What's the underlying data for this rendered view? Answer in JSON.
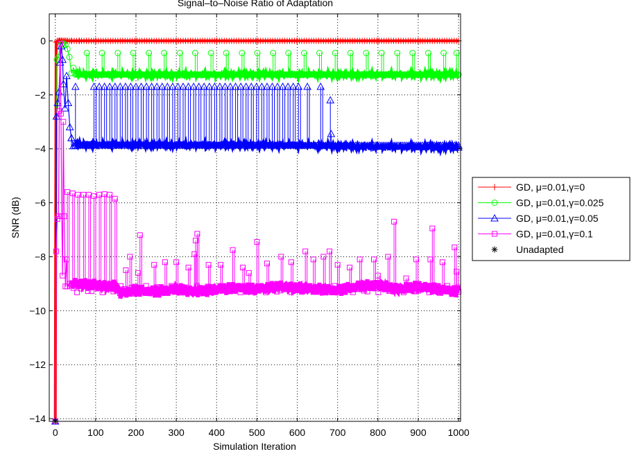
{
  "chart_data": {
    "type": "line",
    "title": "Signal–to–Noise Ratio of Adaptation",
    "xlabel": "Simulation Iteration",
    "ylabel": "SNR (dB)",
    "xlim": [
      -15,
      1005
    ],
    "ylim": [
      -14.1,
      1.0
    ],
    "xticks": [
      0,
      100,
      200,
      300,
      400,
      500,
      600,
      700,
      800,
      900,
      1000
    ],
    "yticks": [
      0,
      -2,
      -4,
      -6,
      -8,
      -10,
      -12,
      -14
    ],
    "grid": true,
    "legend_position": "outside-right",
    "series": [
      {
        "name": "GD, μ=0.01,γ=0",
        "color": "#ff0000",
        "marker": "plus",
        "x": [
          0,
          2,
          5,
          8,
          10,
          12,
          15,
          20,
          25,
          30,
          40,
          60,
          100,
          200,
          300,
          400,
          500,
          600,
          700,
          800,
          900,
          1000
        ],
        "y": [
          -14.1,
          -0.05,
          -0.02,
          -0.01,
          0,
          0,
          0,
          0,
          0,
          0,
          0,
          0,
          0,
          0,
          0,
          0,
          0,
          0,
          0,
          0,
          0,
          0
        ]
      },
      {
        "name": "GD, μ=0.01,γ=0.025",
        "color": "#00ff00",
        "marker": "circle",
        "x": [
          0,
          4,
          8,
          12,
          16,
          20,
          25,
          30,
          35,
          40,
          45,
          50,
          60,
          80,
          100,
          200,
          300,
          400,
          500,
          600,
          700,
          800,
          900,
          1000
        ],
        "y": [
          -14.1,
          -0.7,
          -0.6,
          -0.2,
          -0.1,
          -0.1,
          -0.15,
          -0.3,
          -0.6,
          -1.2,
          -1.0,
          -1.2,
          -1.25,
          -1.25,
          -1.25,
          -1.25,
          -1.25,
          -1.25,
          -1.25,
          -1.25,
          -1.25,
          -1.25,
          -1.25,
          -1.25
        ],
        "spikes_x": [
          78,
          116,
          155,
          193,
          232,
          270,
          309,
          347,
          386,
          424,
          463,
          501,
          540,
          578,
          617,
          655,
          694,
          732,
          771,
          809,
          848,
          886,
          925,
          963,
          995
        ],
        "spikes_y": -0.45
      },
      {
        "name": "GD, μ=0.01,γ=0.05",
        "color": "#0000ff",
        "marker": "triangle",
        "x": [
          0,
          3,
          6,
          9,
          12,
          15,
          18,
          20,
          24,
          28,
          32,
          36,
          40,
          45,
          50,
          60,
          80,
          100,
          200,
          300,
          400,
          500,
          600,
          700,
          800,
          900,
          1000
        ],
        "y": [
          -14.1,
          -2.8,
          -2.3,
          -1.9,
          -0.8,
          -0.2,
          -0.7,
          -1.6,
          -2.5,
          -1.3,
          -2.3,
          -3.2,
          -3.6,
          -3.9,
          -3.8,
          -3.85,
          -3.85,
          -3.85,
          -3.85,
          -3.85,
          -3.85,
          -3.87,
          -3.87,
          -3.9,
          -3.92,
          -3.93,
          -3.95
        ],
        "spikes_x": [
          96,
          109,
          122,
          135,
          148,
          161,
          174,
          187,
          200,
          213,
          226,
          239,
          252,
          265,
          278,
          291,
          304,
          317,
          330,
          343,
          356,
          369,
          382,
          395,
          408,
          421,
          434,
          447,
          460,
          473,
          486,
          499,
          512,
          525,
          538,
          551,
          564,
          577,
          590,
          603,
          625,
          658
        ],
        "spikes_y": -1.7,
        "extra_spikes": [
          [
            682,
            -2.2
          ],
          [
            684,
            -3.45
          ],
          [
            50,
            -1.7
          ],
          [
            40,
            -3.6
          ]
        ]
      },
      {
        "name": "GD, μ=0.01,γ=0.1",
        "color": "#ff00ff",
        "marker": "square",
        "x": [
          0,
          2,
          5,
          8,
          10,
          12,
          14,
          16,
          18,
          20,
          22,
          25,
          28,
          30,
          35,
          40,
          60,
          100,
          150,
          160,
          200,
          250,
          300,
          350,
          400,
          450,
          500,
          550,
          600,
          650,
          700,
          750,
          800,
          850,
          900,
          950,
          1000
        ],
        "y": [
          -14.1,
          -7.8,
          -6.6,
          -6.5,
          -2.6,
          -0.1,
          -2.7,
          -6.5,
          -8.7,
          -3.0,
          -6.5,
          -9.1,
          -8.1,
          -9.1,
          -9.0,
          -9.0,
          -9.0,
          -9.05,
          -9.1,
          -9.35,
          -9.25,
          -9.3,
          -9.2,
          -9.3,
          -9.2,
          -9.15,
          -9.2,
          -9.1,
          -9.15,
          -9.2,
          -9.25,
          -9.1,
          -9.05,
          -9.2,
          -9.1,
          -9.2,
          -9.3
        ],
        "spikes": [
          [
            30,
            -5.6
          ],
          [
            43,
            -5.65
          ],
          [
            56,
            -5.7
          ],
          [
            70,
            -5.7
          ],
          [
            83,
            -5.7
          ],
          [
            96,
            -5.75
          ],
          [
            109,
            -5.7
          ],
          [
            122,
            -5.68
          ],
          [
            135,
            -5.7
          ],
          [
            148,
            -5.85
          ],
          [
            175,
            -8.5
          ],
          [
            185,
            -8.0
          ],
          [
            205,
            -8.6
          ],
          [
            210,
            -7.2
          ],
          [
            245,
            -8.3
          ],
          [
            272,
            -8.2
          ],
          [
            300,
            -8.2
          ],
          [
            330,
            -8.4
          ],
          [
            345,
            -7.9
          ],
          [
            348,
            -7.4
          ],
          [
            352,
            -7.15
          ],
          [
            380,
            -8.3
          ],
          [
            410,
            -8.3
          ],
          [
            440,
            -7.75
          ],
          [
            465,
            -8.4
          ],
          [
            480,
            -8.6
          ],
          [
            500,
            -7.45
          ],
          [
            525,
            -8.25
          ],
          [
            560,
            -8.0
          ],
          [
            585,
            -8.2
          ],
          [
            620,
            -7.8
          ],
          [
            640,
            -8.1
          ],
          [
            665,
            -8.0
          ],
          [
            680,
            -7.8
          ],
          [
            700,
            -8.3
          ],
          [
            730,
            -8.4
          ],
          [
            755,
            -8.1
          ],
          [
            790,
            -8.1
          ],
          [
            800,
            -8.7
          ],
          [
            825,
            -8.0
          ],
          [
            840,
            -6.7
          ],
          [
            870,
            -8.8
          ],
          [
            895,
            -8.1
          ],
          [
            930,
            -8.1
          ],
          [
            935,
            -6.95
          ],
          [
            960,
            -8.2
          ],
          [
            990,
            -7.65
          ],
          [
            995,
            -8.55
          ]
        ]
      },
      {
        "name": "Unadapted",
        "color": "#000000",
        "marker": "asterisk",
        "x": [
          0
        ],
        "y": [
          -14.1
        ]
      }
    ]
  }
}
